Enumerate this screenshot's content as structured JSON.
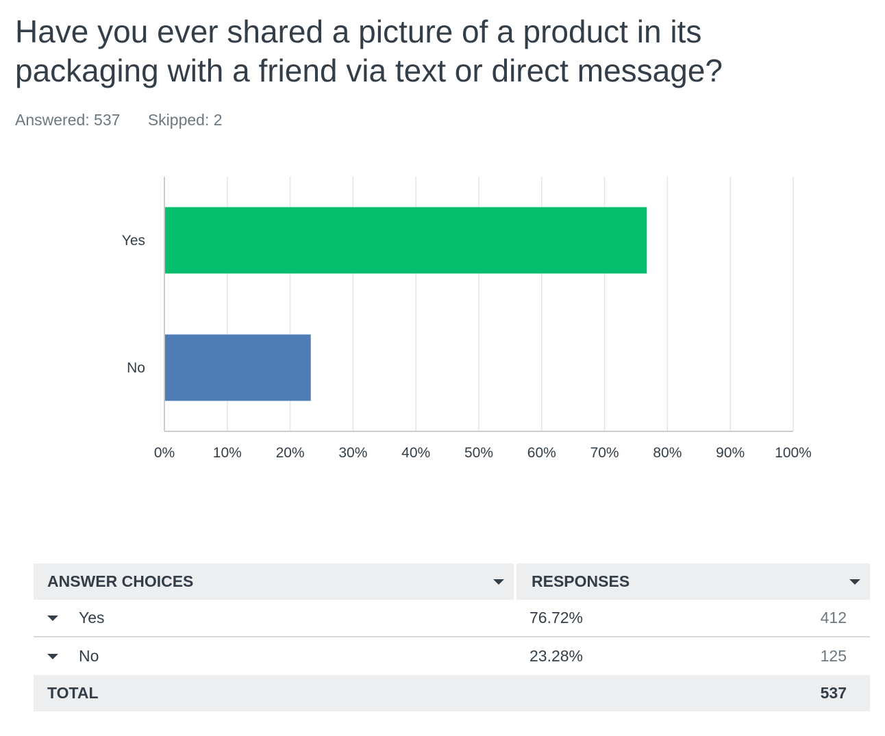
{
  "question": {
    "title_line1": "Have you ever shared a picture of a product in its",
    "title_line2": "packaging with a friend via text or direct message?",
    "answered": "Answered: 537",
    "skipped": "Skipped: 2"
  },
  "chart_data": {
    "type": "bar",
    "orientation": "horizontal",
    "categories": [
      "Yes",
      "No"
    ],
    "values": [
      76.72,
      23.28
    ],
    "colors": [
      "#05bf6e",
      "#507cb6"
    ],
    "xlim": [
      0,
      100
    ],
    "x_ticks": [
      "0%",
      "10%",
      "20%",
      "30%",
      "40%",
      "50%",
      "60%",
      "70%",
      "80%",
      "90%",
      "100%"
    ],
    "grid": true
  },
  "table": {
    "header_choices": "ANSWER CHOICES",
    "header_responses": "RESPONSES",
    "rows": [
      {
        "choice": "Yes",
        "percent": "76.72%",
        "count": "412"
      },
      {
        "choice": "No",
        "percent": "23.28%",
        "count": "125"
      }
    ],
    "total_label": "TOTAL",
    "total_value": "537"
  }
}
